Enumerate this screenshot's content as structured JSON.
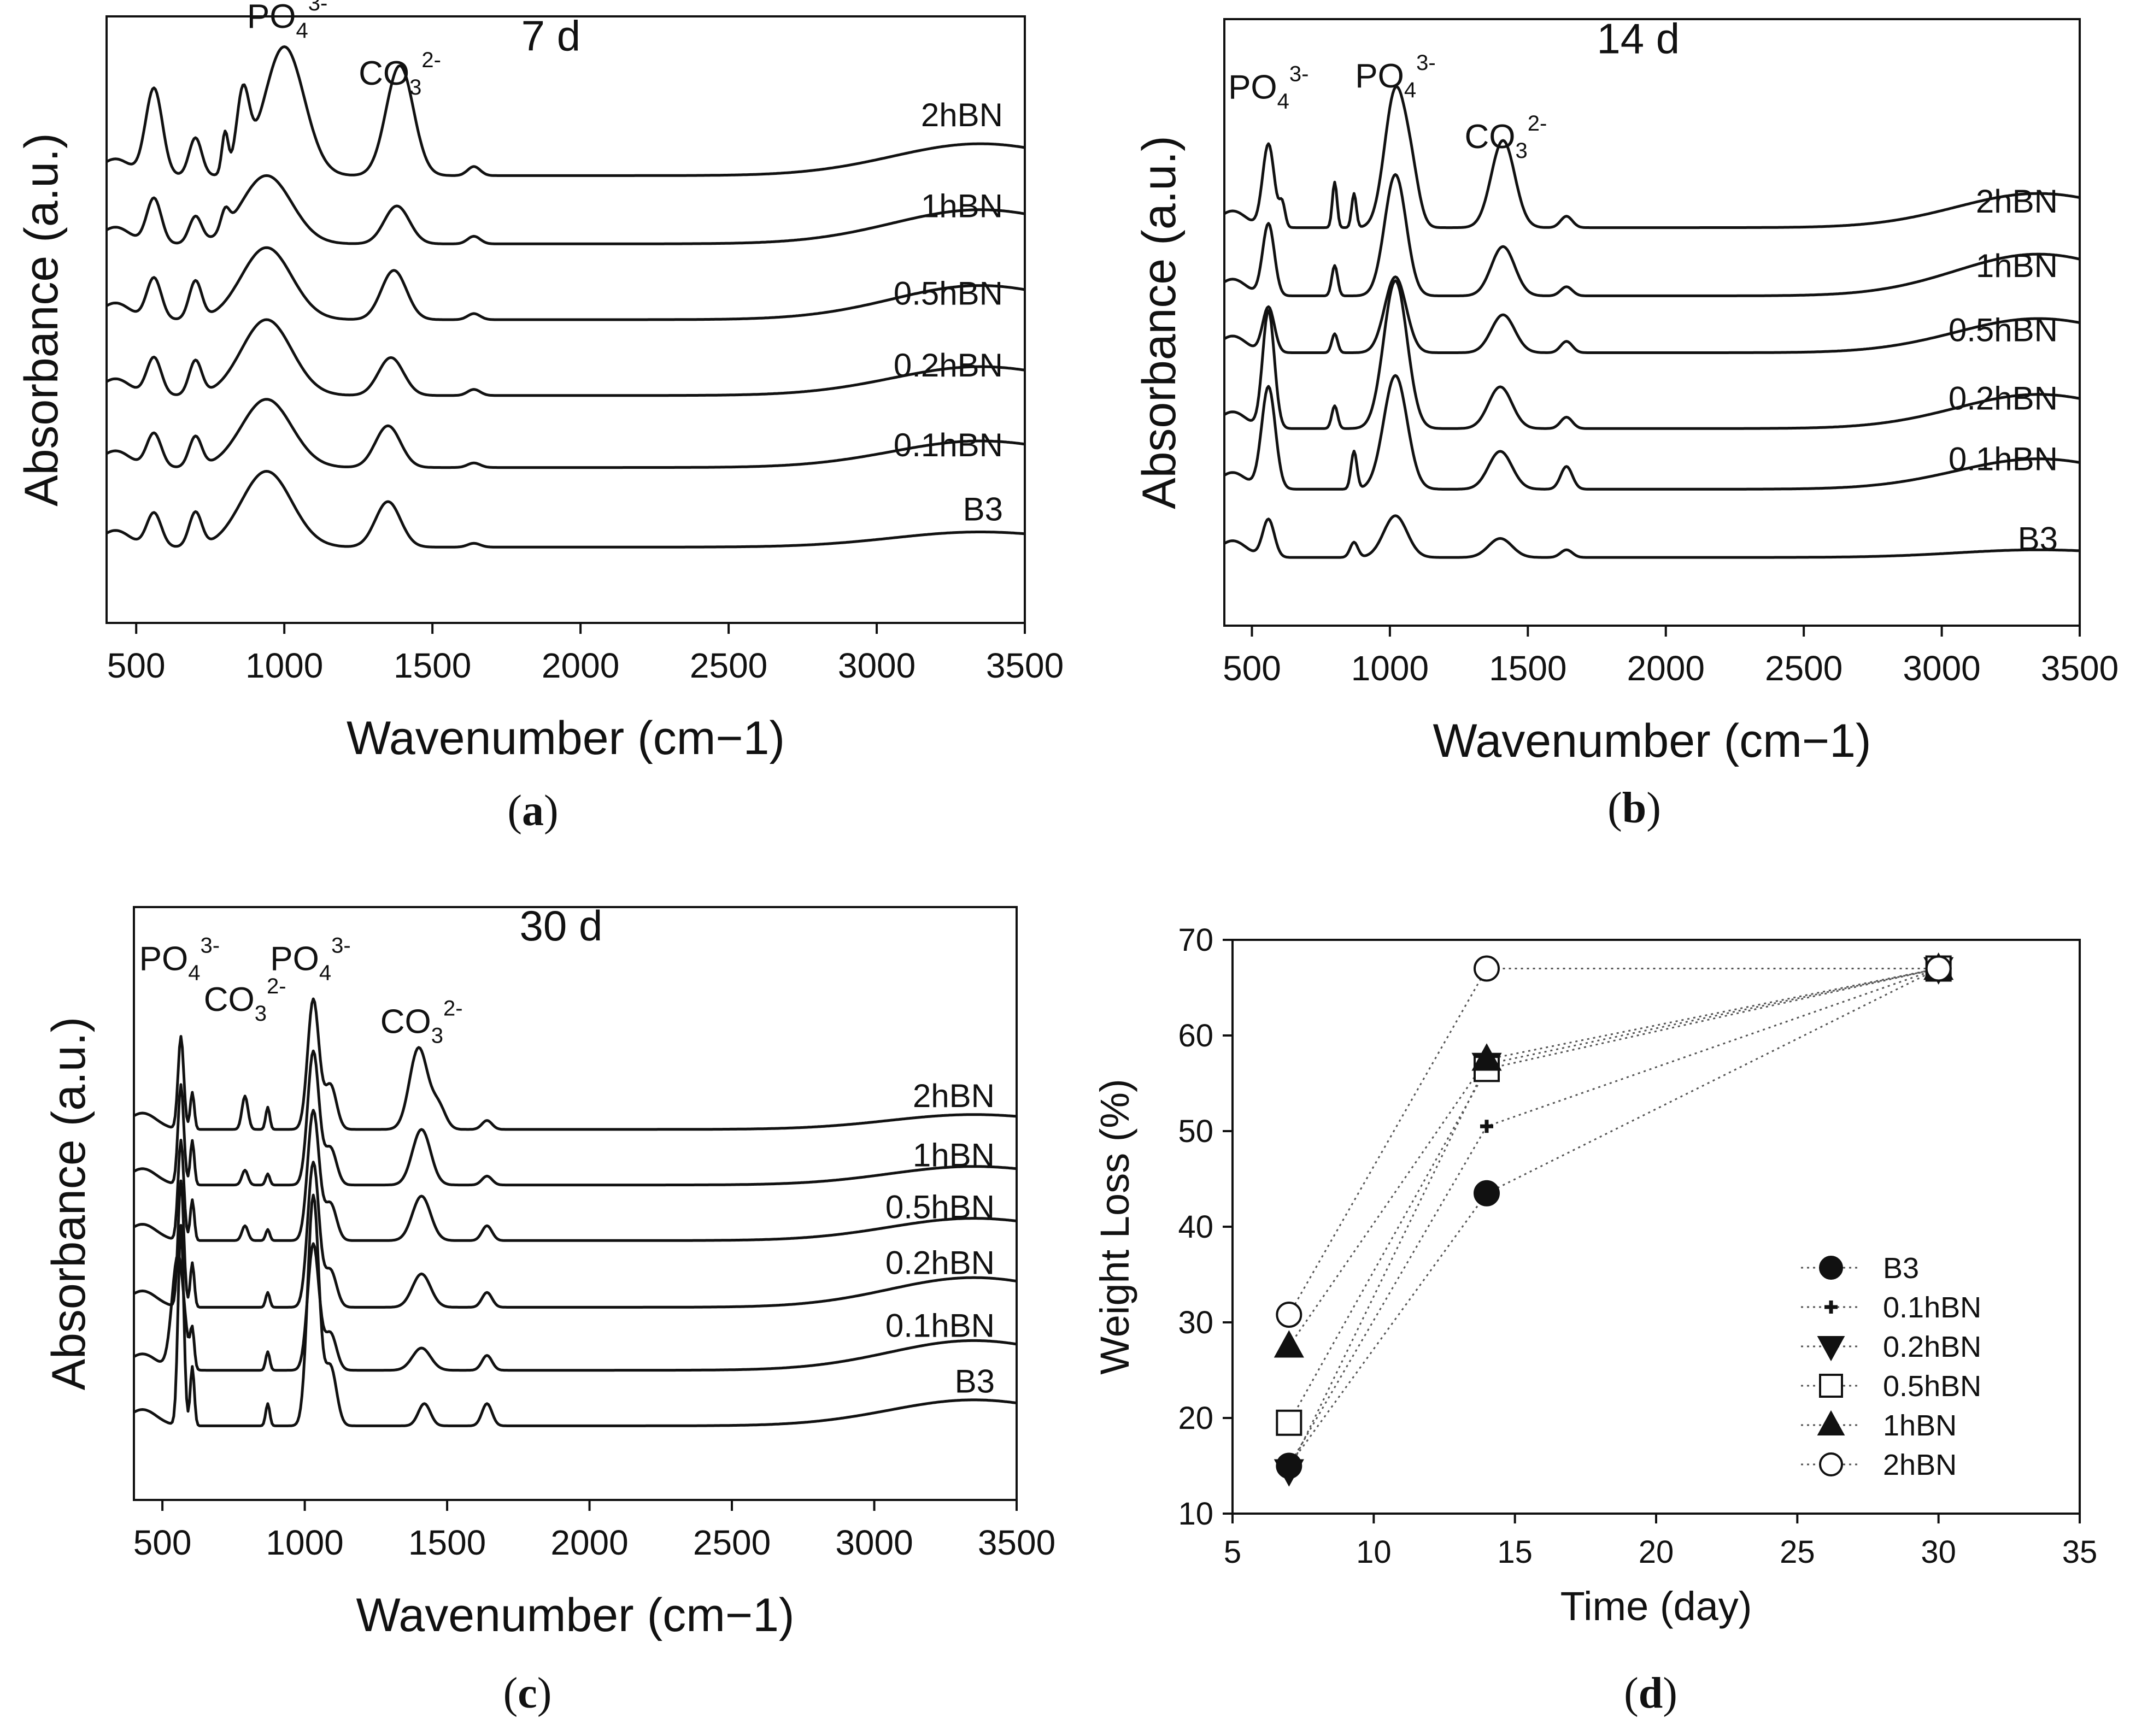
{
  "chart_data": [
    {
      "id": "a",
      "type": "line",
      "title": "7 d",
      "caption": "a",
      "xlabel": "Wavenumber (cm−1)",
      "ylabel": "Absorbance (a.u.)",
      "xlim": [
        400,
        3500
      ],
      "xticks": [
        500,
        1000,
        1500,
        2000,
        2500,
        3000,
        3500
      ],
      "ylim": [
        0,
        8
      ],
      "annotations": [
        {
          "base": "PO",
          "sub": "4",
          "sup": "3-",
          "x": 1010,
          "y": 7.85
        },
        {
          "base": "CO",
          "sub": "3",
          "sup": "2-",
          "x": 1390,
          "y": 7.1
        }
      ],
      "series": [
        {
          "name": "2hBN",
          "offset": 5.9,
          "label_y": 6.55,
          "peaks": [
            [
              560,
              1.15,
              40
            ],
            [
              700,
              0.5,
              30
            ],
            [
              800,
              0.55,
              15
            ],
            [
              860,
              1.0,
              30
            ],
            [
              1000,
              1.7,
              95
            ],
            [
              1390,
              1.45,
              65
            ],
            [
              1640,
              0.12,
              30
            ]
          ],
          "tail": 0.42
        },
        {
          "name": "1hBN",
          "offset": 5.0,
          "label_y": 5.35,
          "peaks": [
            [
              560,
              0.6,
              35
            ],
            [
              700,
              0.35,
              30
            ],
            [
              800,
              0.25,
              20
            ],
            [
              940,
              0.9,
              120
            ],
            [
              1380,
              0.5,
              60
            ],
            [
              1640,
              0.1,
              30
            ]
          ],
          "tail": 0.45
        },
        {
          "name": "0.5hBN",
          "offset": 4.0,
          "label_y": 4.2,
          "peaks": [
            [
              560,
              0.55,
              35
            ],
            [
              700,
              0.5,
              30
            ],
            [
              940,
              0.95,
              120
            ],
            [
              1370,
              0.65,
              60
            ],
            [
              1640,
              0.08,
              30
            ]
          ],
          "tail": 0.45
        },
        {
          "name": "0.2hBN",
          "offset": 3.0,
          "label_y": 3.25,
          "peaks": [
            [
              560,
              0.5,
              35
            ],
            [
              700,
              0.45,
              30
            ],
            [
              940,
              1.0,
              120
            ],
            [
              1360,
              0.5,
              60
            ],
            [
              1640,
              0.08,
              30
            ]
          ],
          "tail": 0.38
        },
        {
          "name": "0.1hBN",
          "offset": 2.05,
          "label_y": 2.2,
          "peaks": [
            [
              560,
              0.45,
              35
            ],
            [
              700,
              0.4,
              30
            ],
            [
              940,
              0.9,
              120
            ],
            [
              1350,
              0.55,
              60
            ],
            [
              1640,
              0.06,
              30
            ]
          ],
          "tail": 0.35
        },
        {
          "name": "B3",
          "offset": 1.0,
          "label_y": 1.35,
          "peaks": [
            [
              560,
              0.45,
              35
            ],
            [
              700,
              0.45,
              30
            ],
            [
              940,
              1.0,
              120
            ],
            [
              1350,
              0.6,
              60
            ],
            [
              1640,
              0.05,
              30
            ]
          ],
          "tail": 0.2
        }
      ]
    },
    {
      "id": "b",
      "type": "line",
      "title": "14 d",
      "caption": "b",
      "xlabel": "Wavenumber (cm−1)",
      "ylabel": "Absorbance (a.u.)",
      "xlim": [
        400,
        3500
      ],
      "xticks": [
        500,
        1000,
        1500,
        2000,
        2500,
        3000,
        3500
      ],
      "ylim": [
        0,
        8
      ],
      "annotations": [
        {
          "base": "PO",
          "sub": "4",
          "sup": "3-",
          "x": 560,
          "y": 6.95
        },
        {
          "base": "PO",
          "sub": "4",
          "sup": "3-",
          "x": 1020,
          "y": 7.1
        },
        {
          "base": "CO",
          "sub": "3",
          "sup": "2-",
          "x": 1420,
          "y": 6.3
        }
      ],
      "series": [
        {
          "name": "2hBN",
          "offset": 5.25,
          "label_y": 5.45,
          "peaks": [
            [
              560,
              1.1,
              30
            ],
            [
              610,
              0.3,
              15
            ],
            [
              800,
              0.6,
              12
            ],
            [
              870,
              0.45,
              12
            ],
            [
              1020,
              1.8,
              55
            ],
            [
              1080,
              0.5,
              40
            ],
            [
              1410,
              1.15,
              60
            ],
            [
              1640,
              0.15,
              30
            ]
          ],
          "tail": 0.45
        },
        {
          "name": "1hBN",
          "offset": 4.35,
          "label_y": 4.6,
          "peaks": [
            [
              560,
              0.95,
              30
            ],
            [
              800,
              0.4,
              15
            ],
            [
              1020,
              1.6,
              55
            ],
            [
              1410,
              0.65,
              60
            ],
            [
              1640,
              0.12,
              30
            ]
          ],
          "tail": 0.55
        },
        {
          "name": "0.5hBN",
          "offset": 3.6,
          "label_y": 3.75,
          "peaks": [
            [
              560,
              0.6,
              30
            ],
            [
              800,
              0.25,
              15
            ],
            [
              1020,
              1.0,
              55
            ],
            [
              1410,
              0.5,
              60
            ],
            [
              1640,
              0.15,
              30
            ]
          ],
          "tail": 0.45
        },
        {
          "name": "0.2hBN",
          "offset": 2.6,
          "label_y": 2.85,
          "peaks": [
            [
              560,
              1.55,
              30
            ],
            [
              800,
              0.3,
              15
            ],
            [
              1020,
              1.95,
              60
            ],
            [
              1400,
              0.55,
              60
            ],
            [
              1640,
              0.15,
              30
            ]
          ],
          "tail": 0.45
        },
        {
          "name": "0.1hBN",
          "offset": 1.8,
          "label_y": 2.05,
          "peaks": [
            [
              560,
              1.35,
              35
            ],
            [
              870,
              0.5,
              15
            ],
            [
              1020,
              1.5,
              60
            ],
            [
              1400,
              0.5,
              60
            ],
            [
              1640,
              0.3,
              30
            ]
          ],
          "tail": 0.4
        },
        {
          "name": "B3",
          "offset": 0.9,
          "label_y": 1.0,
          "peaks": [
            [
              560,
              0.5,
              30
            ],
            [
              870,
              0.2,
              20
            ],
            [
              1020,
              0.55,
              60
            ],
            [
              1400,
              0.25,
              60
            ],
            [
              1640,
              0.1,
              30
            ]
          ],
          "tail": 0.1
        }
      ]
    },
    {
      "id": "c",
      "type": "line",
      "title": "30 d",
      "caption": "c",
      "xlabel": "Wavenumber (cm−1)",
      "ylabel": "Absorbance (a.u.)",
      "xlim": [
        400,
        3500
      ],
      "xticks": [
        500,
        1000,
        1500,
        2000,
        2500,
        3000,
        3500
      ],
      "ylim": [
        0,
        8
      ],
      "annotations": [
        {
          "base": "PO",
          "sub": "4",
          "sup": "3-",
          "x": 560,
          "y": 7.15
        },
        {
          "base": "CO",
          "sub": "3",
          "sup": "2-",
          "x": 790,
          "y": 6.6
        },
        {
          "base": "PO",
          "sub": "4",
          "sup": "3-",
          "x": 1020,
          "y": 7.15
        },
        {
          "base": "CO",
          "sub": "3",
          "sup": "2-",
          "x": 1410,
          "y": 6.3
        }
      ],
      "series": [
        {
          "name": "2hBN",
          "offset": 5.0,
          "label_y": 5.3,
          "peaks": [
            [
              565,
              1.25,
              14
            ],
            [
              605,
              0.5,
              10
            ],
            [
              790,
              0.45,
              15
            ],
            [
              870,
              0.3,
              10
            ],
            [
              1030,
              1.75,
              28
            ],
            [
              1090,
              0.6,
              30
            ],
            [
              1400,
              1.1,
              45
            ],
            [
              1470,
              0.3,
              35
            ],
            [
              1640,
              0.12,
              25
            ]
          ],
          "tail": 0.2
        },
        {
          "name": "1hBN",
          "offset": 4.25,
          "label_y": 4.5,
          "peaks": [
            [
              565,
              1.35,
              14
            ],
            [
              605,
              0.6,
              10
            ],
            [
              790,
              0.2,
              15
            ],
            [
              870,
              0.15,
              10
            ],
            [
              1030,
              1.8,
              28
            ],
            [
              1090,
              0.5,
              30
            ],
            [
              1410,
              0.75,
              45
            ],
            [
              1640,
              0.12,
              25
            ]
          ],
          "tail": 0.25
        },
        {
          "name": "0.5hBN",
          "offset": 3.5,
          "label_y": 3.8,
          "peaks": [
            [
              565,
              1.35,
              14
            ],
            [
              605,
              0.55,
              10
            ],
            [
              790,
              0.2,
              15
            ],
            [
              870,
              0.15,
              10
            ],
            [
              1030,
              1.75,
              28
            ],
            [
              1090,
              0.5,
              30
            ],
            [
              1410,
              0.6,
              45
            ],
            [
              1640,
              0.2,
              25
            ]
          ],
          "tail": 0.3
        },
        {
          "name": "0.2hBN",
          "offset": 2.6,
          "label_y": 3.05,
          "peaks": [
            [
              565,
              1.7,
              14
            ],
            [
              605,
              0.6,
              10
            ],
            [
              870,
              0.2,
              10
            ],
            [
              1030,
              1.95,
              28
            ],
            [
              1090,
              0.5,
              30
            ],
            [
              1410,
              0.45,
              45
            ],
            [
              1640,
              0.2,
              25
            ]
          ],
          "tail": 0.4
        },
        {
          "name": "0.1hBN",
          "offset": 1.75,
          "label_y": 2.2,
          "peaks": [
            [
              555,
              1.55,
              30
            ],
            [
              605,
              0.5,
              10
            ],
            [
              870,
              0.25,
              10
            ],
            [
              1030,
              1.7,
              28
            ],
            [
              1090,
              0.5,
              30
            ],
            [
              1410,
              0.3,
              45
            ],
            [
              1640,
              0.2,
              25
            ]
          ],
          "tail": 0.4
        },
        {
          "name": "B3",
          "offset": 1.0,
          "label_y": 1.45,
          "peaks": [
            [
              565,
              2.7,
              14
            ],
            [
              605,
              0.8,
              10
            ],
            [
              870,
              0.3,
              10
            ],
            [
              1030,
              3.1,
              28
            ],
            [
              1090,
              0.8,
              30
            ],
            [
              1420,
              0.3,
              30
            ],
            [
              1640,
              0.3,
              25
            ]
          ],
          "tail": 0.35
        }
      ]
    },
    {
      "id": "d",
      "type": "scatter",
      "caption": "d",
      "xlabel": "Time (day)",
      "ylabel": "Weight Loss (%)",
      "xlim": [
        5,
        35
      ],
      "ylim": [
        10,
        70
      ],
      "xticks": [
        5,
        10,
        15,
        20,
        25,
        30,
        35
      ],
      "yticks": [
        10,
        20,
        30,
        40,
        50,
        60,
        70
      ],
      "legend_position": "lower-right",
      "series": [
        {
          "name": "B3",
          "marker": "filled-circle",
          "x": [
            7,
            14,
            30
          ],
          "y": [
            15,
            43.5,
            67
          ]
        },
        {
          "name": "0.1hBN",
          "marker": "plus",
          "x": [
            7,
            14,
            30
          ],
          "y": [
            15,
            50.5,
            67
          ]
        },
        {
          "name": "0.2hBN",
          "marker": "filled-triangle-down",
          "x": [
            7,
            14,
            30
          ],
          "y": [
            14.5,
            57,
            67
          ]
        },
        {
          "name": "0.5hBN",
          "marker": "open-square",
          "x": [
            7,
            14,
            30
          ],
          "y": [
            19.5,
            56.5,
            67
          ]
        },
        {
          "name": "1hBN",
          "marker": "filled-triangle-up",
          "x": [
            7,
            14,
            30
          ],
          "y": [
            27.5,
            57.5,
            67
          ]
        },
        {
          "name": "2hBN",
          "marker": "open-circle",
          "x": [
            7,
            14,
            30
          ],
          "y": [
            30.8,
            67,
            67
          ]
        }
      ]
    }
  ]
}
